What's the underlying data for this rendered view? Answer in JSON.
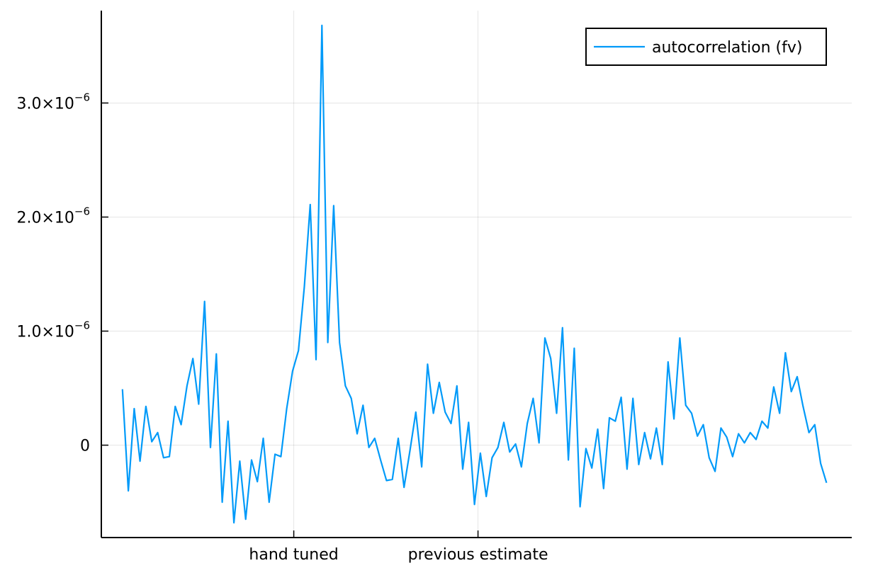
{
  "chart_data": {
    "type": "line",
    "series": [
      {
        "name": "autocorrelation (fv)",
        "color": "#009af9",
        "x": [
          1,
          2,
          3,
          4,
          5,
          6,
          7,
          8,
          9,
          10,
          11,
          12,
          13,
          14,
          15,
          16,
          17,
          18,
          19,
          20,
          21,
          22,
          23,
          24,
          25,
          26,
          27,
          28,
          29,
          30,
          31,
          32,
          33,
          34,
          35,
          36,
          37,
          38,
          39,
          40,
          41,
          42,
          43,
          44,
          45,
          46,
          47,
          48,
          49,
          50,
          51,
          52,
          53,
          54,
          55,
          56,
          57,
          58,
          59,
          60,
          61,
          62,
          63,
          64,
          65,
          66,
          67,
          68,
          69,
          70,
          71,
          72,
          73,
          74,
          75,
          76,
          77,
          78,
          79,
          80,
          81,
          82,
          83,
          84,
          85,
          86,
          87,
          88,
          89,
          90,
          91,
          92,
          93,
          94,
          95,
          96,
          97,
          98,
          99,
          100,
          101,
          102,
          103,
          104,
          105,
          106,
          107,
          108,
          109,
          110,
          111,
          112,
          113,
          114,
          115,
          116,
          117,
          118,
          119,
          120,
          121
        ],
        "values": [
          0.49,
          -0.4,
          0.32,
          -0.14,
          0.34,
          0.03,
          0.11,
          -0.11,
          -0.1,
          0.34,
          0.18,
          0.52,
          0.76,
          0.36,
          1.26,
          -0.02,
          0.8,
          -0.5,
          0.21,
          -0.68,
          -0.14,
          -0.65,
          -0.13,
          -0.32,
          0.06,
          -0.5,
          -0.08,
          -0.1,
          0.32,
          0.65,
          0.83,
          1.39,
          2.11,
          0.75,
          3.68,
          0.9,
          2.1,
          0.9,
          0.52,
          0.41,
          0.1,
          0.35,
          -0.02,
          0.06,
          -0.13,
          -0.31,
          -0.3,
          0.06,
          -0.37,
          -0.05,
          0.29,
          -0.19,
          0.71,
          0.28,
          0.55,
          0.29,
          0.19,
          0.52,
          -0.21,
          0.2,
          -0.52,
          -0.07,
          -0.45,
          -0.11,
          -0.02,
          0.2,
          -0.06,
          0.01,
          -0.19,
          0.19,
          0.41,
          0.02,
          0.94,
          0.76,
          0.28,
          1.03,
          -0.13,
          0.85,
          -0.54,
          -0.03,
          -0.2,
          0.14,
          -0.38,
          0.24,
          0.21,
          0.42,
          -0.21,
          0.41,
          -0.17,
          0.11,
          -0.12,
          0.15,
          -0.17,
          0.73,
          0.23,
          0.94,
          0.35,
          0.28,
          0.08,
          0.18,
          -0.11,
          -0.23,
          0.15,
          0.07,
          -0.1,
          0.1,
          0.02,
          0.11,
          0.05,
          0.21,
          0.15,
          0.51,
          0.28,
          0.81,
          0.47,
          0.6,
          0.34,
          0.11,
          0.18,
          -0.16,
          -0.33
        ]
      }
    ],
    "y_scale_label": "×10",
    "y_scale_exponent": "−6",
    "y_ticks": [
      {
        "value": 0,
        "label": "0"
      },
      {
        "value": 1.0,
        "label": "1.0"
      },
      {
        "value": 2.0,
        "label": "2.0"
      },
      {
        "value": 3.0,
        "label": "3.0"
      }
    ],
    "x_ticks": [
      {
        "value": 30.2,
        "label": "hand tuned"
      },
      {
        "value": 61.6,
        "label": "previous estimate"
      }
    ],
    "xlim": [
      -2.6,
      125.3
    ],
    "ylim": [
      -0.81,
      3.81
    ],
    "grid": true,
    "legend": "top-right",
    "title": "",
    "xlabel": "",
    "ylabel": ""
  }
}
